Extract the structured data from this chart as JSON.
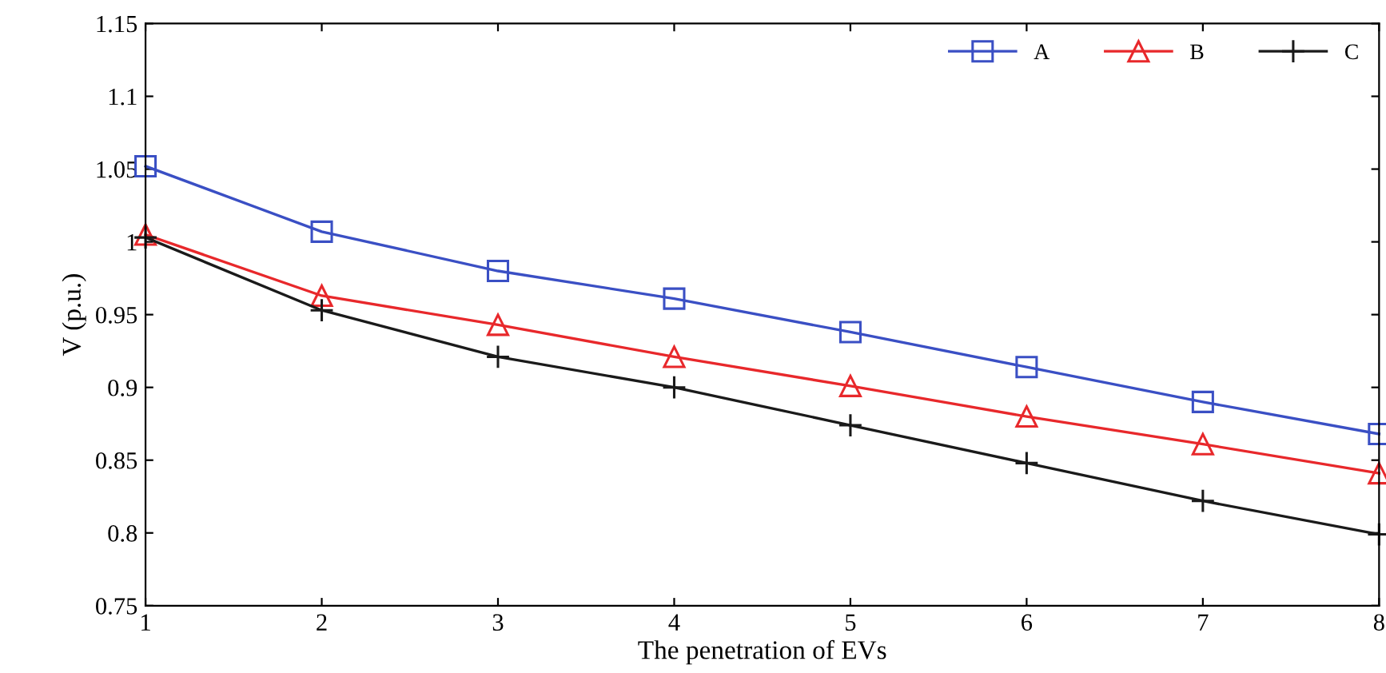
{
  "chart_data": {
    "type": "line",
    "xlabel": "The penetration of EVs",
    "ylabel": "V (p.u.)",
    "x": [
      1,
      2,
      3,
      4,
      5,
      6,
      7,
      8
    ],
    "series": [
      {
        "name": "A",
        "color": "#3a4fc4",
        "marker": "square",
        "values": [
          1.052,
          1.007,
          0.98,
          0.961,
          0.938,
          0.914,
          0.89,
          0.868
        ]
      },
      {
        "name": "B",
        "color": "#e8282b",
        "marker": "triangle",
        "values": [
          1.005,
          0.963,
          0.943,
          0.921,
          0.901,
          0.88,
          0.861,
          0.841
        ]
      },
      {
        "name": "C",
        "color": "#1a1a1a",
        "marker": "cross",
        "values": [
          1.003,
          0.953,
          0.921,
          0.9,
          0.874,
          0.848,
          0.822,
          0.799
        ]
      }
    ],
    "xlim": [
      1,
      8
    ],
    "xticks": [
      1,
      2,
      3,
      4,
      5,
      6,
      7,
      8
    ],
    "ylim": [
      0.75,
      1.15
    ],
    "yticks": [
      0.75,
      0.8,
      0.85,
      0.9,
      0.95,
      1,
      1.05,
      1.1,
      1.15
    ],
    "grid": false,
    "legend": "top right",
    "line_style": "solid"
  }
}
